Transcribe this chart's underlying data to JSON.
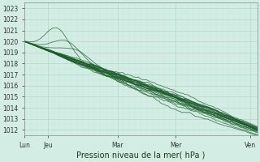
{
  "title": "",
  "xlabel": "Pression niveau de la mer( hPa )",
  "ylim": [
    1011.5,
    1023.5
  ],
  "xlim": [
    0,
    100
  ],
  "yticks": [
    1012,
    1013,
    1014,
    1015,
    1016,
    1017,
    1018,
    1019,
    1020,
    1021,
    1022,
    1023
  ],
  "xtick_positions": [
    0,
    10,
    40,
    65,
    97
  ],
  "xtick_labels": [
    "Lun",
    "Jeu",
    "Mar",
    "Mer",
    "Ven"
  ],
  "bg_color": "#d4ede4",
  "grid_color_major": "#b0d8c8",
  "grid_color_minor": "#c4e8dc",
  "line_color": "#1a5c28",
  "n_steps": 200
}
